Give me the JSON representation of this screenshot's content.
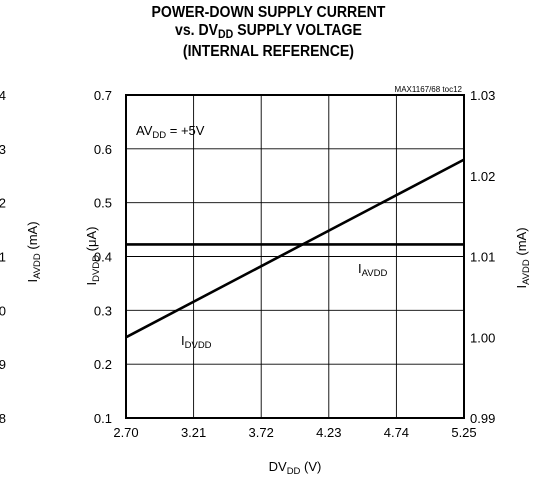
{
  "title": {
    "line1": "POWER-DOWN SUPPLY CURRENT",
    "line2_pre": "vs. DV",
    "line2_sub": "DD",
    "line2_post": " SUPPLY VOLTAGE",
    "line3": "(INTERNAL REFERENCE)"
  },
  "chart_data": {
    "type": "line",
    "x": [
      2.7,
      5.25
    ],
    "xlabel": {
      "main": "DV",
      "sub": "DD",
      "post": " (V)"
    },
    "xticks": [
      "2.70",
      "3.21",
      "3.72",
      "4.23",
      "4.74",
      "5.25"
    ],
    "xlim": [
      2.7,
      5.25
    ],
    "ylabel_left": {
      "main": "I",
      "sub": "DVDD",
      "post": " (μA)"
    },
    "yticks_left": [
      "0.7",
      "0.6",
      "0.5",
      "0.4",
      "0.3",
      "0.2",
      "0.1"
    ],
    "ylim_left": [
      0.1,
      0.7
    ],
    "ylabel_right": {
      "main": "I",
      "sub": "AVDD",
      "post": " (mA)"
    },
    "yticks_right": [
      "1.03",
      "1.02",
      "1.01",
      "1.00",
      "0.99"
    ],
    "ylim_right": [
      0.99,
      1.03
    ],
    "series": [
      {
        "name": "I_DVDD",
        "axis": "left",
        "values": [
          0.25,
          0.58
        ]
      },
      {
        "name": "I_AVDD",
        "axis": "right",
        "values": [
          1.0115,
          1.0115
        ]
      }
    ],
    "series_labels": [
      {
        "main": "I",
        "sub": "DVDD"
      },
      {
        "main": "I",
        "sub": "AVDD"
      }
    ],
    "annotation": {
      "main": "AV",
      "sub": "DD",
      "post": " = +5V"
    },
    "figure_id": "MAX1167/68 toc12",
    "grid": true
  },
  "ghost_left": {
    "ticks": [
      "4",
      "3",
      "2",
      "1",
      "0",
      "9",
      "8"
    ],
    "label": {
      "main": "I",
      "sub": "AVDD",
      "post": " (mA)"
    }
  }
}
